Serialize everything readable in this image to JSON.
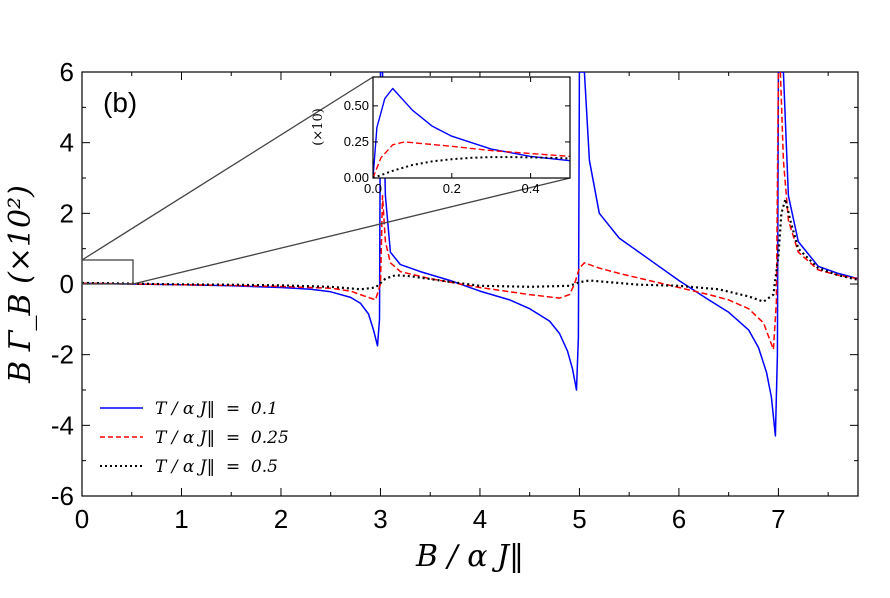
{
  "panel_label": "(b)",
  "main_axes": {
    "xlabel": "B / α J‖",
    "ylabel": "B Γ_B (×10²)",
    "xlim": [
      0,
      7.8
    ],
    "ylim": [
      -6,
      6
    ],
    "xticks": [
      "0",
      "1",
      "2",
      "3",
      "4",
      "5",
      "6",
      "7"
    ],
    "yticks": [
      "-6",
      "-4",
      "-2",
      "0",
      "2",
      "4",
      "6"
    ]
  },
  "inset_axes": {
    "ylabel": "(×10)",
    "xlim": [
      0,
      0.5
    ],
    "ylim": [
      0,
      0.7
    ],
    "xticks": [
      "0.0",
      "0.2",
      "0.4"
    ],
    "yticks": [
      "0.00",
      "0.25",
      "0.50"
    ]
  },
  "legend": [
    {
      "label": "T / α J‖  =  0.1",
      "color": "#0000ff",
      "style": "solid"
    },
    {
      "label": "T / α J‖  =  0.25",
      "color": "#ff0000",
      "style": "dashed"
    },
    {
      "label": "T / α J‖  =  0.5",
      "color": "#000000",
      "style": "dotted"
    }
  ],
  "chart_data": {
    "type": "line",
    "xlabel": "B / α J‖",
    "ylabel": "B Γ_B (×10²)",
    "xlim": [
      0,
      7.8
    ],
    "ylim": [
      -6,
      6
    ],
    "series": [
      {
        "name": "T / α J‖ = 0.1",
        "color": "#0000ff",
        "style": "solid",
        "x": [
          0,
          0.5,
          1.0,
          1.5,
          2.0,
          2.3,
          2.5,
          2.7,
          2.8,
          2.88,
          2.93,
          2.97,
          2.99,
          3.0,
          3.02,
          3.05,
          3.1,
          3.2,
          3.4,
          3.7,
          4.0,
          4.3,
          4.5,
          4.7,
          4.8,
          4.88,
          4.93,
          4.97,
          4.99,
          5.0,
          5.02,
          5.05,
          5.1,
          5.2,
          5.4,
          5.7,
          6.0,
          6.3,
          6.5,
          6.7,
          6.8,
          6.88,
          6.93,
          6.97,
          6.99,
          7.0,
          7.02,
          7.05,
          7.1,
          7.2,
          7.4,
          7.6,
          7.8
        ],
        "y": [
          0.02,
          0.0,
          -0.02,
          -0.05,
          -0.1,
          -0.15,
          -0.22,
          -0.38,
          -0.55,
          -0.85,
          -1.3,
          -1.75,
          -1.0,
          6.0,
          6.0,
          2.5,
          0.9,
          0.55,
          0.35,
          0.1,
          -0.2,
          -0.45,
          -0.7,
          -1.05,
          -1.4,
          -1.9,
          -2.4,
          -3.0,
          -1.5,
          6.0,
          6.0,
          6.0,
          3.5,
          2.0,
          1.3,
          0.7,
          0.1,
          -0.45,
          -0.8,
          -1.3,
          -1.8,
          -2.5,
          -3.2,
          -4.3,
          -2.0,
          6.0,
          6.0,
          6.0,
          2.5,
          1.2,
          0.5,
          0.3,
          0.15
        ]
      },
      {
        "name": "T / α J‖ = 0.25",
        "color": "#ff0000",
        "style": "dashed",
        "x": [
          0,
          0.5,
          1.0,
          1.5,
          2.0,
          2.5,
          2.7,
          2.85,
          2.95,
          3.0,
          3.02,
          3.05,
          3.1,
          3.2,
          3.5,
          4.0,
          4.5,
          4.8,
          4.9,
          4.95,
          5.0,
          5.05,
          5.1,
          5.2,
          5.4,
          5.7,
          6.0,
          6.3,
          6.5,
          6.7,
          6.85,
          6.95,
          6.98,
          7.0,
          7.02,
          7.05,
          7.1,
          7.2,
          7.4,
          7.6,
          7.8
        ],
        "y": [
          0.02,
          0.0,
          -0.02,
          -0.04,
          -0.07,
          -0.12,
          -0.2,
          -0.35,
          -0.45,
          0.0,
          2.5,
          1.2,
          0.6,
          0.35,
          0.15,
          -0.1,
          -0.3,
          -0.4,
          -0.3,
          0.0,
          0.45,
          0.6,
          0.55,
          0.45,
          0.3,
          0.1,
          -0.1,
          -0.3,
          -0.45,
          -0.7,
          -1.1,
          -1.85,
          -0.5,
          6.0,
          6.0,
          3.5,
          1.8,
          0.9,
          0.4,
          0.25,
          0.15
        ]
      },
      {
        "name": "T / α J‖ = 0.5",
        "color": "#000000",
        "style": "dotted",
        "x": [
          0,
          0.5,
          1.0,
          1.5,
          2.0,
          2.5,
          2.8,
          2.95,
          3.05,
          3.15,
          3.3,
          3.6,
          4.0,
          4.5,
          4.9,
          5.0,
          5.1,
          5.3,
          5.6,
          6.0,
          6.4,
          6.7,
          6.85,
          6.95,
          7.0,
          7.03,
          7.07,
          7.12,
          7.2,
          7.4,
          7.6,
          7.8
        ],
        "y": [
          0.03,
          0.01,
          -0.01,
          -0.02,
          -0.04,
          -0.08,
          -0.15,
          -0.1,
          0.15,
          0.25,
          0.22,
          0.1,
          -0.05,
          -0.08,
          -0.05,
          0.05,
          0.1,
          0.05,
          -0.02,
          -0.05,
          -0.15,
          -0.35,
          -0.5,
          -0.3,
          0.8,
          2.0,
          2.4,
          1.8,
          1.0,
          0.45,
          0.25,
          0.12
        ]
      }
    ],
    "inset": {
      "xlim": [
        0,
        0.5
      ],
      "ylim": [
        0,
        0.7
      ],
      "series": [
        {
          "name": "T / α J‖ = 0.1",
          "color": "#0000ff",
          "style": "solid",
          "x": [
            0,
            0.01,
            0.03,
            0.05,
            0.07,
            0.1,
            0.15,
            0.2,
            0.3,
            0.4,
            0.5
          ],
          "y": [
            0.0,
            0.35,
            0.55,
            0.62,
            0.56,
            0.47,
            0.36,
            0.29,
            0.2,
            0.15,
            0.12
          ]
        },
        {
          "name": "T / α J‖ = 0.25",
          "color": "#ff0000",
          "style": "dashed",
          "x": [
            0,
            0.02,
            0.05,
            0.08,
            0.12,
            0.2,
            0.3,
            0.4,
            0.5
          ],
          "y": [
            0.0,
            0.14,
            0.23,
            0.25,
            0.24,
            0.22,
            0.19,
            0.17,
            0.15
          ]
        },
        {
          "name": "T / α J‖ = 0.5",
          "color": "#000000",
          "style": "dotted",
          "x": [
            0,
            0.05,
            0.1,
            0.15,
            0.2,
            0.25,
            0.3,
            0.35,
            0.4,
            0.45,
            0.5
          ],
          "y": [
            0.0,
            0.05,
            0.09,
            0.115,
            0.13,
            0.14,
            0.145,
            0.145,
            0.143,
            0.14,
            0.135
          ]
        }
      ]
    }
  }
}
